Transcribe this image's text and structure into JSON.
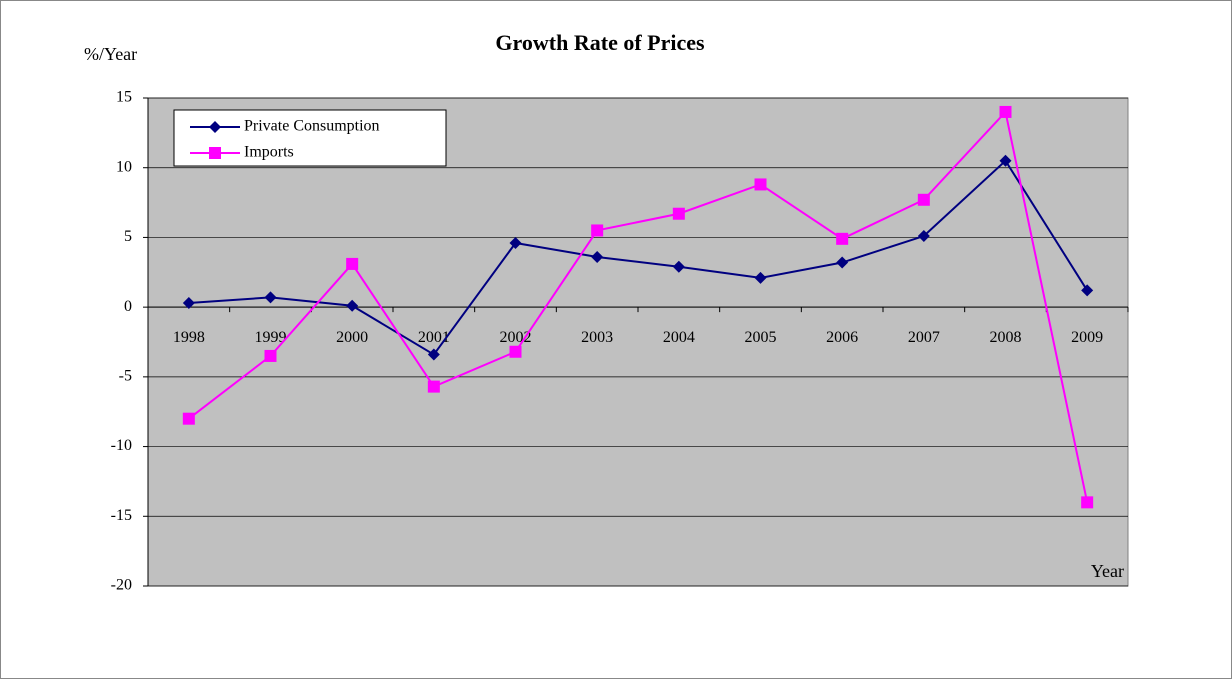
{
  "chart_data": {
    "type": "line",
    "title": "Growth Rate of Prices",
    "y_label": "%/Year",
    "x_label": "Year",
    "categories": [
      "1998",
      "1999",
      "2000",
      "2001",
      "2002",
      "2003",
      "2004",
      "2005",
      "2006",
      "2007",
      "2008",
      "2009"
    ],
    "series": [
      {
        "name": "Private Consumption",
        "color": "#000080",
        "marker": "diamond",
        "values": [
          0.3,
          0.7,
          0.1,
          -3.4,
          4.6,
          3.6,
          2.9,
          2.1,
          3.2,
          5.1,
          10.5,
          1.2
        ]
      },
      {
        "name": "Imports",
        "color": "#ff00ff",
        "marker": "square",
        "values": [
          -8.0,
          -3.5,
          3.1,
          -5.7,
          -3.2,
          5.5,
          6.7,
          8.8,
          4.9,
          7.7,
          14.0,
          -14.0
        ]
      }
    ],
    "ylim": [
      -20,
      15
    ],
    "yticks": [
      -20,
      -15,
      -10,
      -5,
      0,
      5,
      10,
      15
    ],
    "grid": true,
    "legend": "upper left",
    "background": "#c0c0c0"
  }
}
